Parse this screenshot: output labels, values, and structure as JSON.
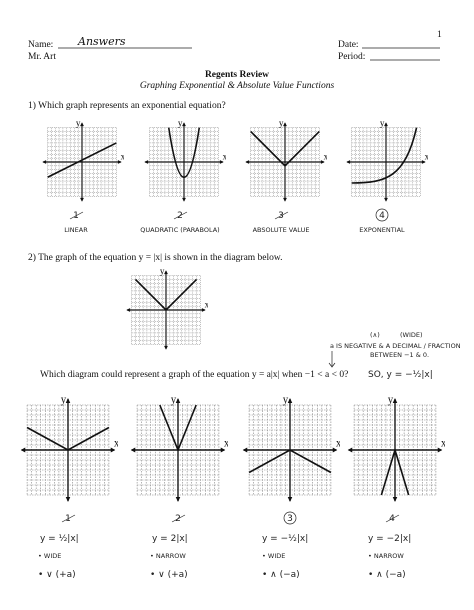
{
  "page_number": "1",
  "header": {
    "name_label": "Name:",
    "name_answer": "Answers",
    "teacher": "Mr. Art",
    "date_label": "Date:",
    "period_label": "Period:"
  },
  "title": "Regents Review",
  "subtitle": "Graphing Exponential & Absolute Value Functions",
  "axis_labels": {
    "x": "x",
    "y": "y"
  },
  "question_1": {
    "prompt": "1) Which graph represents an exponential equation?",
    "choices": [
      {
        "number": "1",
        "note": "LINEAR"
      },
      {
        "number": "2",
        "note": "QUADRATIC (PARABOLA)"
      },
      {
        "number": "3",
        "note": "ABSOLUTE VALUE"
      },
      {
        "number": "4",
        "note": "EXPONENTIAL"
      }
    ]
  },
  "question_2": {
    "prompt": "2) The graph of the equation y = |x| is shown in the diagram below.",
    "question": "Which diagram could represent a graph of the equation y = a|x| when −1 < a < 0?",
    "notes": {
      "shape": "(∧)",
      "width": "(WIDE)",
      "reason_line_1": "a IS NEGATIVE & A DECIMAL / FRACTION",
      "reason_line_2": "BETWEEN −1 & 0.",
      "conclusion": "SO,  y = −½|x|"
    },
    "choices": [
      {
        "number": "1",
        "equation": "y = ½|x|",
        "width": "• WIDE",
        "shape": "• ∨ (+a)"
      },
      {
        "number": "2",
        "equation": "y = 2|x|",
        "width": "• NARROW",
        "shape": "• ∨ (+a)"
      },
      {
        "number": "3",
        "equation": "y = −½|x|",
        "width": "• WIDE",
        "shape": "• ∧ (−a)"
      },
      {
        "number": "4",
        "equation": "y = −2|x|",
        "width": "• NARROW",
        "shape": "• ∧ (−a)"
      }
    ]
  }
}
